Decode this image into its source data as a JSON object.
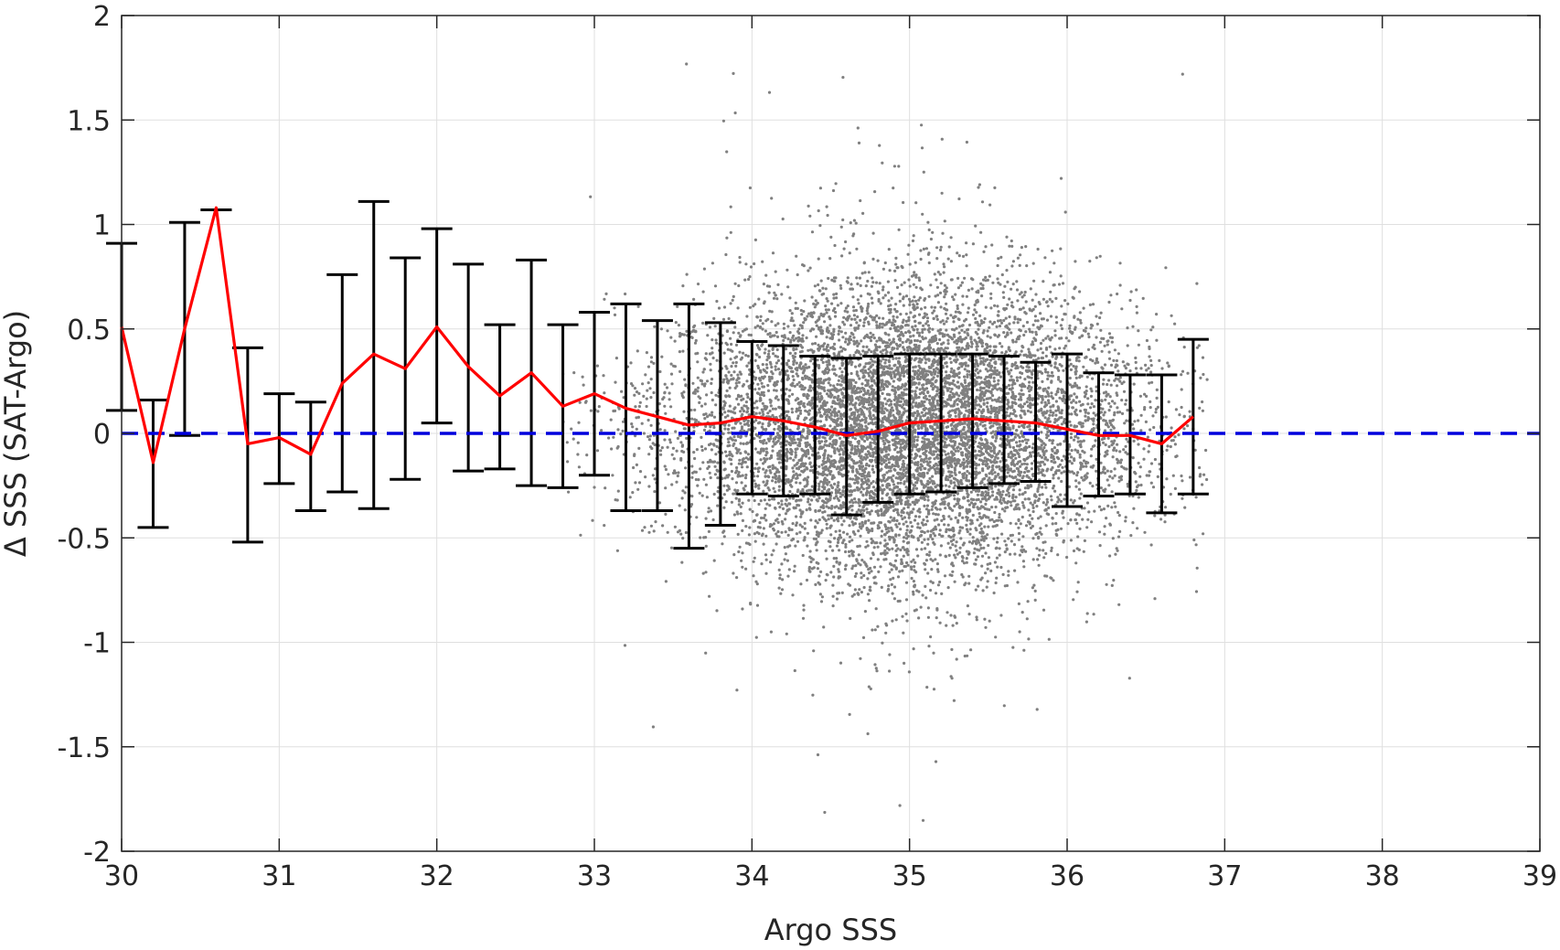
{
  "chart_data": {
    "type": "scatter",
    "xlabel": "Argo SSS",
    "ylabel": "Δ SSS (SAT-Argo)",
    "xlim": [
      30,
      39
    ],
    "ylim": [
      -2,
      2
    ],
    "xticks": [
      30,
      31,
      32,
      33,
      34,
      35,
      36,
      37,
      38,
      39
    ],
    "yticks": [
      -2,
      -1.5,
      -1,
      -0.5,
      0,
      0.5,
      1,
      1.5,
      2
    ],
    "xtick_labels": [
      "30",
      "31",
      "32",
      "33",
      "34",
      "35",
      "36",
      "37",
      "38",
      "39"
    ],
    "ytick_labels": [
      "-2",
      "-1.5",
      "-1",
      "-0.5",
      "0",
      "0.5",
      "1",
      "1.5",
      "2"
    ],
    "grid": true,
    "reference_line": {
      "y": 0,
      "style": "dashed",
      "color": "#0000dd"
    },
    "scatter": {
      "color": "#808080",
      "description": "dense cloud of individual match-ups, centered near SSS 35, spread roughly ±0.7 with outliers to ±1.9",
      "center_x": 35.0,
      "spread_x": 0.75,
      "x_range": [
        32.8,
        36.9
      ],
      "center_y": 0.03,
      "spread_y": 0.33,
      "y_range": [
        -1.9,
        1.9
      ]
    },
    "series": [
      {
        "kind": "mean_line",
        "color": "#ff0000",
        "x": [
          30.0,
          30.2,
          30.4,
          30.6,
          30.8,
          31.0,
          31.2,
          31.4,
          31.6,
          31.8,
          32.0,
          32.2,
          32.4,
          32.6,
          32.8,
          33.0,
          33.2,
          33.4,
          33.6,
          33.8,
          34.0,
          34.2,
          34.4,
          34.6,
          34.8,
          35.0,
          35.2,
          35.4,
          35.6,
          35.8,
          36.0,
          36.2,
          36.4,
          36.6,
          36.8
        ],
        "y": [
          0.51,
          -0.14,
          0.5,
          1.08,
          -0.05,
          -0.02,
          -0.1,
          0.24,
          0.38,
          0.31,
          0.51,
          0.32,
          0.18,
          0.29,
          0.13,
          0.19,
          0.12,
          0.08,
          0.04,
          0.05,
          0.08,
          0.06,
          0.03,
          -0.01,
          0.01,
          0.05,
          0.06,
          0.07,
          0.06,
          0.05,
          0.02,
          -0.01,
          -0.01,
          -0.05,
          0.08
        ]
      },
      {
        "kind": "error_bars",
        "color": "#000000",
        "x": [
          30.0,
          30.2,
          30.4,
          30.6,
          30.8,
          31.0,
          31.2,
          31.4,
          31.6,
          31.8,
          32.0,
          32.2,
          32.4,
          32.6,
          32.8,
          33.0,
          33.2,
          33.4,
          33.6,
          33.8,
          34.0,
          34.2,
          34.4,
          34.6,
          34.8,
          35.0,
          35.2,
          35.4,
          35.6,
          35.8,
          36.0,
          36.2,
          36.4,
          36.6,
          36.8
        ],
        "lower": [
          0.11,
          -0.45,
          -0.01,
          1.07,
          -0.52,
          -0.24,
          -0.37,
          -0.28,
          -0.36,
          -0.22,
          0.05,
          -0.18,
          -0.17,
          -0.25,
          -0.26,
          -0.2,
          -0.37,
          -0.37,
          -0.55,
          -0.44,
          -0.29,
          -0.3,
          -0.29,
          -0.39,
          -0.33,
          -0.29,
          -0.28,
          -0.26,
          -0.24,
          -0.23,
          -0.35,
          -0.3,
          -0.29,
          -0.38,
          -0.29
        ],
        "upper": [
          0.91,
          0.16,
          1.01,
          1.07,
          0.41,
          0.19,
          0.15,
          0.76,
          1.11,
          0.84,
          0.98,
          0.81,
          0.52,
          0.83,
          0.52,
          0.58,
          0.62,
          0.54,
          0.62,
          0.53,
          0.44,
          0.42,
          0.37,
          0.36,
          0.37,
          0.38,
          0.38,
          0.38,
          0.37,
          0.34,
          0.38,
          0.29,
          0.28,
          0.28,
          0.45
        ]
      }
    ]
  }
}
